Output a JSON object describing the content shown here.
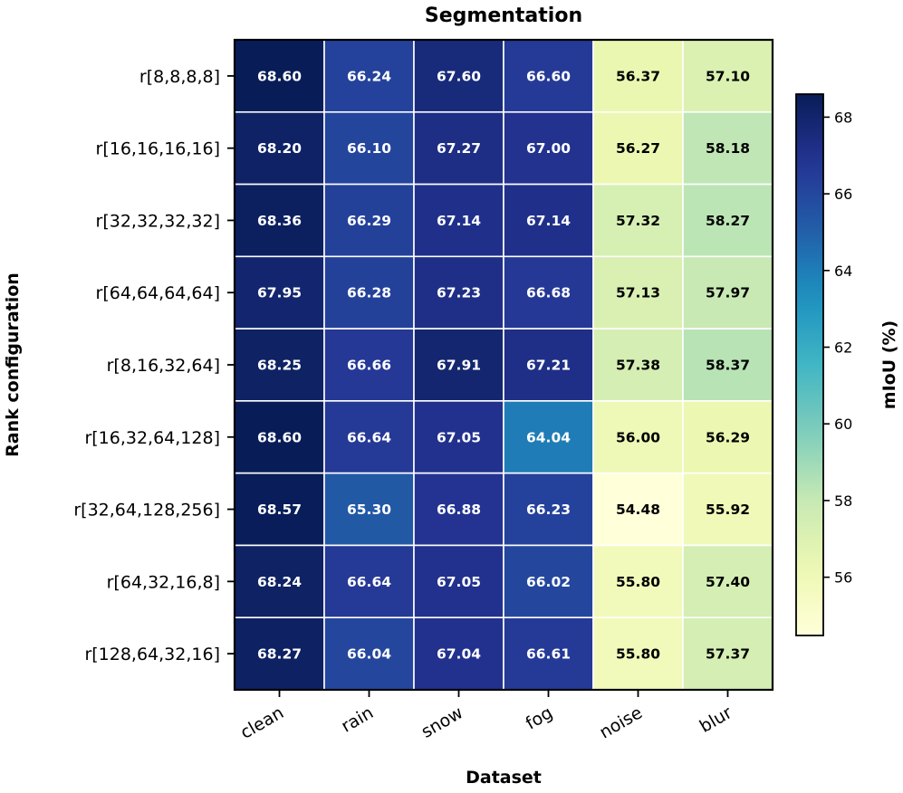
{
  "chart_data": {
    "type": "heatmap",
    "title": "Segmentation",
    "xlabel": "Dataset",
    "ylabel": "Rank configuration",
    "x_categories": [
      "clean",
      "rain",
      "snow",
      "fog",
      "noise",
      "blur"
    ],
    "y_categories": [
      "r[8,8,8,8]",
      "r[16,16,16,16]",
      "r[32,32,32,32]",
      "r[64,64,64,64]",
      "r[8,16,32,64]",
      "r[16,32,64,128]",
      "r[32,64,128,256]",
      "r[64,32,16,8]",
      "r[128,64,32,16]"
    ],
    "values": [
      [
        68.6,
        66.24,
        67.6,
        66.6,
        56.37,
        57.1
      ],
      [
        68.2,
        66.1,
        67.27,
        67.0,
        56.27,
        58.18
      ],
      [
        68.36,
        66.29,
        67.14,
        67.14,
        57.32,
        58.27
      ],
      [
        67.95,
        66.28,
        67.23,
        66.68,
        57.13,
        57.97
      ],
      [
        68.25,
        66.66,
        67.91,
        67.21,
        57.38,
        58.37
      ],
      [
        68.6,
        66.64,
        67.05,
        64.04,
        56.0,
        56.29
      ],
      [
        68.57,
        65.3,
        66.88,
        66.23,
        54.48,
        55.92
      ],
      [
        68.24,
        66.64,
        67.05,
        66.02,
        55.8,
        57.4
      ],
      [
        68.27,
        66.04,
        67.04,
        66.61,
        55.8,
        57.37
      ]
    ],
    "value_format": "2 decimals",
    "colormap": "YlGnBu",
    "colorbar": {
      "label": "mIoU (%)",
      "range": [
        54.48,
        68.6
      ],
      "ticks": [
        56,
        58,
        60,
        62,
        64,
        66,
        68
      ]
    }
  }
}
